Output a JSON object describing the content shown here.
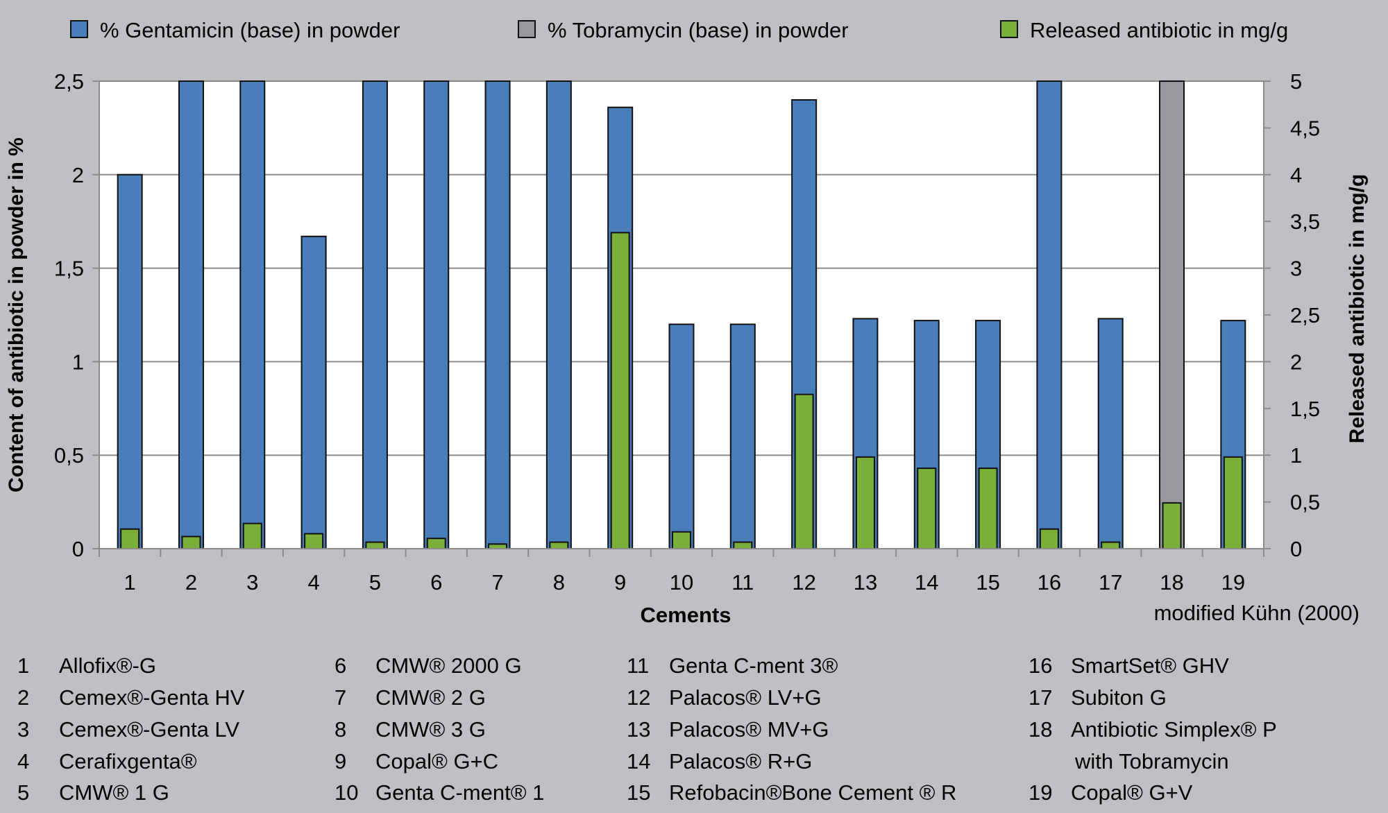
{
  "chart_data": {
    "type": "bar",
    "title": "",
    "xlabel": "Cements",
    "ylabel": "Content of antibiotic in powder in %",
    "y2label": "Released antibiotic in mg/g",
    "note": "modified Kühn (2000)",
    "categories": [
      "1",
      "2",
      "3",
      "4",
      "5",
      "6",
      "7",
      "8",
      "9",
      "10",
      "11",
      "12",
      "13",
      "14",
      "15",
      "16",
      "17",
      "18",
      "19"
    ],
    "ylim": [
      0,
      2.5
    ],
    "y_ticks": [
      "0",
      "0,5",
      "1",
      "1,5",
      "2",
      "2,5"
    ],
    "y2lim": [
      0,
      5
    ],
    "y2_ticks": [
      "0",
      "0,5",
      "1",
      "1,5",
      "2",
      "2,5",
      "3",
      "3,5",
      "4",
      "4,5",
      "5"
    ],
    "grid": true,
    "legend_position": "top",
    "series": [
      {
        "name": "% Gentamicin (base) in powder",
        "axis": "left",
        "color": "#4a7ebb",
        "values": [
          2.0,
          2.5,
          2.5,
          1.67,
          2.5,
          2.5,
          2.5,
          2.5,
          2.36,
          1.2,
          1.2,
          2.4,
          1.23,
          1.22,
          1.22,
          2.5,
          1.23,
          null,
          1.22
        ]
      },
      {
        "name": "% Tobramycin (base) in powder",
        "axis": "left",
        "color": "#9a979d",
        "values": [
          null,
          null,
          null,
          null,
          null,
          null,
          null,
          null,
          null,
          null,
          null,
          null,
          null,
          null,
          null,
          null,
          null,
          2.5,
          null
        ]
      },
      {
        "name": "Released antibiotic in mg/g",
        "axis": "right",
        "color": "#7ab03a",
        "values": [
          0.21,
          0.13,
          0.27,
          0.16,
          0.07,
          0.11,
          0.05,
          0.07,
          3.38,
          0.18,
          0.07,
          1.65,
          0.98,
          0.86,
          0.86,
          0.21,
          0.07,
          0.49,
          0.98
        ]
      }
    ],
    "cement_key": [
      {
        "n": "1",
        "name": "Allofix®-G"
      },
      {
        "n": "2",
        "name": "Cemex®-Genta HV"
      },
      {
        "n": "3",
        "name": "Cemex®-Genta LV"
      },
      {
        "n": "4",
        "name": "Cerafixgenta®"
      },
      {
        "n": "5",
        "name": "CMW® 1 G"
      },
      {
        "n": "6",
        "name": "CMW® 2000 G"
      },
      {
        "n": "7",
        "name": "CMW® 2 G"
      },
      {
        "n": "8",
        "name": "CMW® 3 G"
      },
      {
        "n": "9",
        "name": "Copal® G+C"
      },
      {
        "n": "10",
        "name": "Genta C-ment® 1"
      },
      {
        "n": "11",
        "name": "Genta C-ment 3®"
      },
      {
        "n": "12",
        "name": "Palacos® LV+G"
      },
      {
        "n": "13",
        "name": "Palacos® MV+G"
      },
      {
        "n": "14",
        "name": "Palacos® R+G"
      },
      {
        "n": "15",
        "name": "Refobacin®Bone Cement ® R"
      },
      {
        "n": "16",
        "name": "SmartSet® GHV"
      },
      {
        "n": "17",
        "name": "Subiton G"
      },
      {
        "n": "18",
        "name": "Antibiotic  Simplex® P"
      },
      {
        "n": "",
        "name": "with Tobramycin"
      },
      {
        "n": "19",
        "name": "Copal® G+V"
      }
    ]
  }
}
